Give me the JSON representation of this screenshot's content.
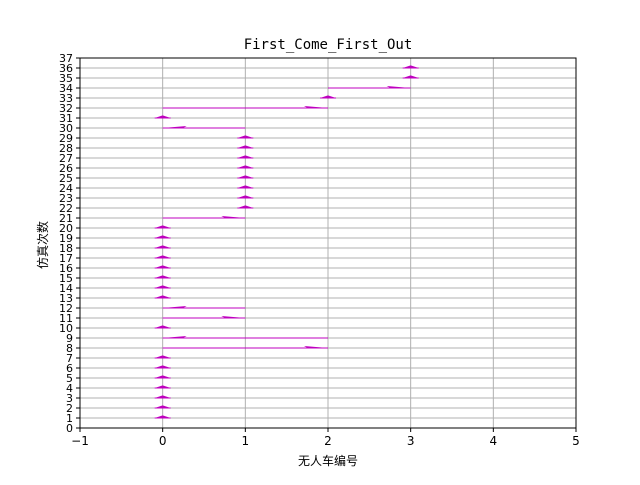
{
  "chart_data": {
    "type": "quiver",
    "title": "First_Come_First_Out",
    "xlabel": "无人车编号",
    "ylabel": "仿真次数",
    "xlim": [
      -1,
      5
    ],
    "ylim": [
      0,
      37
    ],
    "xticks": [
      -1,
      0,
      1,
      2,
      3,
      4,
      5
    ],
    "yticks": [
      0,
      1,
      2,
      3,
      4,
      5,
      6,
      7,
      8,
      9,
      10,
      11,
      12,
      13,
      14,
      15,
      16,
      17,
      18,
      19,
      20,
      21,
      22,
      23,
      24,
      25,
      26,
      27,
      28,
      29,
      30,
      31,
      32,
      33,
      34,
      35,
      36,
      37
    ],
    "grid": true,
    "arrow_color": "#bf00bf",
    "arrows": [
      {
        "y": 1,
        "x_from": 0,
        "x_to": 0
      },
      {
        "y": 2,
        "x_from": 0,
        "x_to": 0
      },
      {
        "y": 3,
        "x_from": 0,
        "x_to": 0
      },
      {
        "y": 4,
        "x_from": 0,
        "x_to": 0
      },
      {
        "y": 5,
        "x_from": 0,
        "x_to": 0
      },
      {
        "y": 6,
        "x_from": 0,
        "x_to": 0
      },
      {
        "y": 7,
        "x_from": 0,
        "x_to": 0
      },
      {
        "y": 8,
        "x_from": 0,
        "x_to": 2
      },
      {
        "y": 9,
        "x_from": 2,
        "x_to": 0
      },
      {
        "y": 10,
        "x_from": 0,
        "x_to": 0
      },
      {
        "y": 11,
        "x_from": 0,
        "x_to": 1
      },
      {
        "y": 12,
        "x_from": 1,
        "x_to": 0
      },
      {
        "y": 13,
        "x_from": 0,
        "x_to": 0
      },
      {
        "y": 14,
        "x_from": 0,
        "x_to": 0
      },
      {
        "y": 15,
        "x_from": 0,
        "x_to": 0
      },
      {
        "y": 16,
        "x_from": 0,
        "x_to": 0
      },
      {
        "y": 17,
        "x_from": 0,
        "x_to": 0
      },
      {
        "y": 18,
        "x_from": 0,
        "x_to": 0
      },
      {
        "y": 19,
        "x_from": 0,
        "x_to": 0
      },
      {
        "y": 20,
        "x_from": 0,
        "x_to": 0
      },
      {
        "y": 21,
        "x_from": 0,
        "x_to": 1
      },
      {
        "y": 22,
        "x_from": 1,
        "x_to": 1
      },
      {
        "y": 23,
        "x_from": 1,
        "x_to": 1
      },
      {
        "y": 24,
        "x_from": 1,
        "x_to": 1
      },
      {
        "y": 25,
        "x_from": 1,
        "x_to": 1
      },
      {
        "y": 26,
        "x_from": 1,
        "x_to": 1
      },
      {
        "y": 27,
        "x_from": 1,
        "x_to": 1
      },
      {
        "y": 28,
        "x_from": 1,
        "x_to": 1
      },
      {
        "y": 29,
        "x_from": 1,
        "x_to": 1
      },
      {
        "y": 30,
        "x_from": 1,
        "x_to": 0
      },
      {
        "y": 31,
        "x_from": 0,
        "x_to": 0
      },
      {
        "y": 32,
        "x_from": 0,
        "x_to": 2
      },
      {
        "y": 33,
        "x_from": 2,
        "x_to": 2
      },
      {
        "y": 34,
        "x_from": 2,
        "x_to": 3
      },
      {
        "y": 35,
        "x_from": 3,
        "x_to": 3
      },
      {
        "y": 36,
        "x_from": 3,
        "x_to": 3
      }
    ]
  }
}
